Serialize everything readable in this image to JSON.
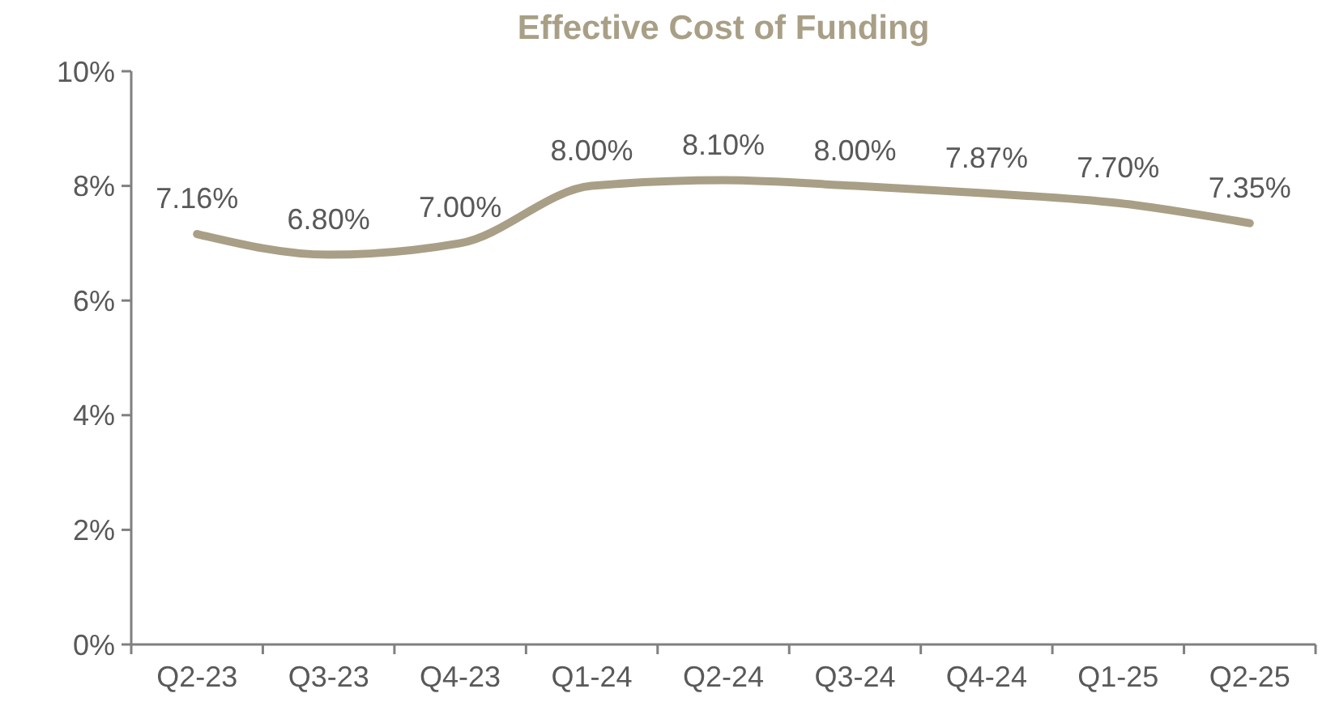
{
  "chart_data": {
    "type": "line",
    "title": "Effective Cost of Funding",
    "categories": [
      "Q2-23",
      "Q3-23",
      "Q4-23",
      "Q1-24",
      "Q2-24",
      "Q3-24",
      "Q4-24",
      "Q1-25",
      "Q2-25"
    ],
    "series": [
      {
        "color": "#a89f86",
        "values": [
          7.16,
          6.8,
          7.0,
          8.0,
          8.1,
          8.0,
          7.87,
          7.7,
          7.35
        ],
        "value_labels": [
          "7.16%",
          "6.80%",
          "7.00%",
          "8.00%",
          "8.10%",
          "8.00%",
          "7.87%",
          "7.70%",
          "7.35%"
        ]
      }
    ],
    "ylim": [
      0,
      10
    ],
    "yticks": [
      {
        "value": 0,
        "label": "0%"
      },
      {
        "value": 2,
        "label": "2%"
      },
      {
        "value": 4,
        "label": "4%"
      },
      {
        "value": 6,
        "label": "6%"
      },
      {
        "value": 8,
        "label": "8%"
      },
      {
        "value": 10,
        "label": "10%"
      }
    ],
    "grid": false,
    "marker": "none",
    "line_style": "solid"
  }
}
